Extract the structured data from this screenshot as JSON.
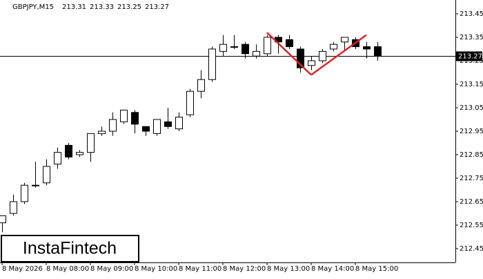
{
  "chart_data": {
    "type": "candlestick",
    "symbol": "GBPJPY,M15",
    "header_values": [
      213.31,
      213.33,
      213.25,
      213.27
    ],
    "categories": [
      "8 May 2026",
      null,
      null,
      null,
      "8 May 08:00",
      null,
      null,
      null,
      "8 May 09:00",
      null,
      null,
      null,
      "8 May 10:00",
      null,
      null,
      null,
      "8 May 11:00",
      null,
      null,
      null,
      "8 May 12:00",
      null,
      null,
      null,
      "8 May 13:00",
      null,
      null,
      null,
      "8 May 14:00",
      null,
      null,
      null,
      "8 May 15:00",
      null,
      null
    ],
    "open": [
      212.56,
      212.6,
      212.65,
      212.72,
      212.73,
      212.81,
      212.89,
      212.85,
      212.86,
      212.94,
      212.95,
      212.99,
      213.03,
      212.97,
      212.94,
      212.99,
      212.96,
      213.02,
      213.12,
      213.17,
      213.29,
      213.31,
      213.32,
      213.27,
      213.28,
      213.35,
      213.34,
      213.3,
      213.23,
      213.25,
      213.3,
      213.33,
      213.34,
      213.31,
      213.31
    ],
    "high": [
      212.59,
      212.68,
      212.73,
      212.82,
      212.83,
      212.88,
      212.9,
      212.87,
      212.94,
      212.97,
      213.03,
      213.04,
      213.04,
      212.97,
      213.0,
      213.05,
      213.03,
      213.13,
      213.21,
      213.31,
      213.36,
      213.36,
      213.33,
      213.32,
      213.36,
      213.36,
      213.36,
      213.31,
      213.27,
      213.3,
      213.33,
      213.35,
      213.35,
      213.33,
      213.33
    ],
    "low": [
      212.52,
      212.59,
      212.64,
      212.71,
      212.72,
      212.79,
      212.83,
      212.84,
      212.82,
      212.93,
      212.93,
      212.98,
      212.94,
      212.93,
      212.93,
      212.96,
      212.95,
      213.01,
      213.09,
      213.16,
      213.27,
      213.3,
      213.26,
      213.26,
      213.27,
      213.28,
      213.3,
      213.2,
      213.21,
      213.24,
      213.29,
      213.29,
      213.3,
      213.26,
      213.25
    ],
    "close": [
      212.59,
      212.65,
      212.72,
      212.72,
      212.8,
      212.86,
      212.84,
      212.86,
      212.94,
      212.95,
      213.0,
      213.04,
      212.98,
      212.95,
      213.0,
      212.97,
      213.01,
      213.12,
      213.17,
      213.3,
      213.32,
      213.31,
      213.28,
      213.29,
      213.35,
      213.33,
      213.31,
      213.22,
      213.25,
      213.29,
      213.32,
      213.35,
      213.31,
      213.3,
      213.27
    ],
    "current_price": 213.27,
    "pattern": {
      "color": "#e02020",
      "points": [
        {
          "index": 24,
          "value": 213.37
        },
        {
          "index": 28,
          "value": 213.19
        },
        {
          "index": 33,
          "value": 213.36
        }
      ]
    },
    "ylim": [
      212.3912,
      213.5088
    ],
    "yticks": [
      212.45,
      212.55,
      212.65,
      212.75,
      212.85,
      212.95,
      213.05,
      213.15,
      213.25,
      213.35,
      213.45
    ],
    "logo": "InstaFintech"
  }
}
